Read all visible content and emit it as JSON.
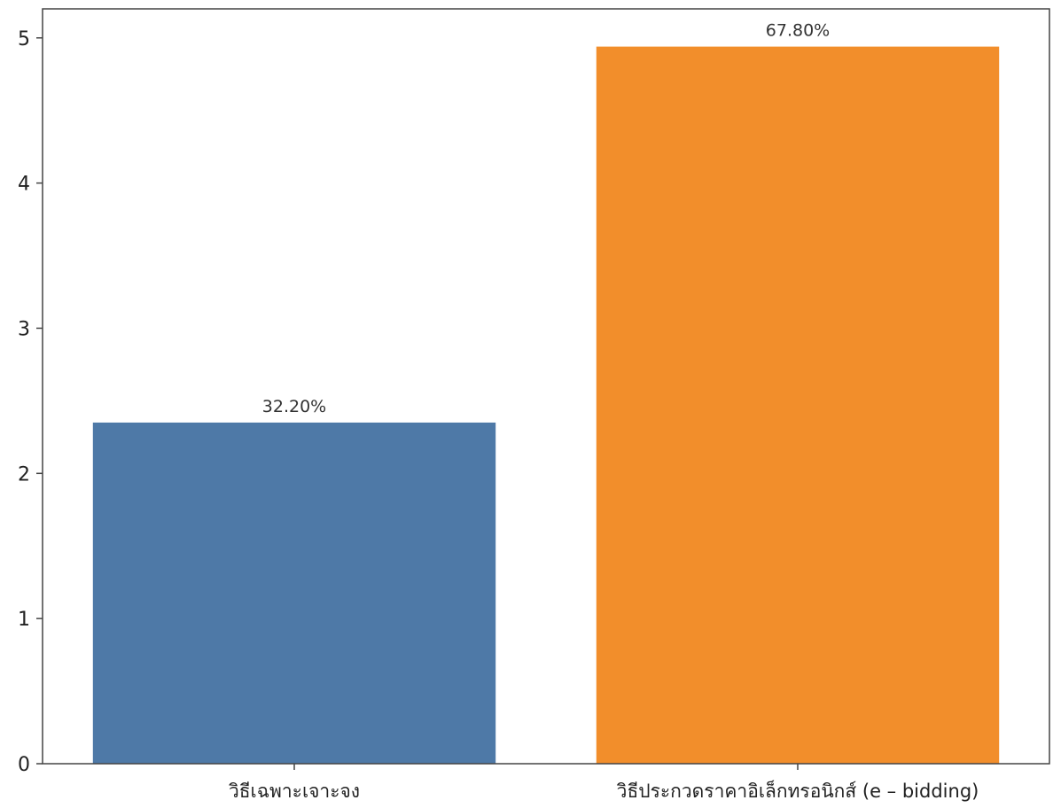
{
  "chart_data": {
    "type": "bar",
    "categories": [
      "วิธีเฉพาะเจาะจง",
      "วิธีประกวดราคาอิเล็กทรอนิกส์ (e –  bidding)"
    ],
    "values": [
      2.35,
      4.94
    ],
    "data_labels": [
      "32.20%",
      "67.80%"
    ],
    "bar_colors": [
      "#4e79a7",
      "#f28e2b"
    ],
    "ylim": [
      0,
      5.2
    ],
    "yticks": [
      0,
      1,
      2,
      3,
      4,
      5
    ],
    "title": "",
    "xlabel": "",
    "ylabel": "",
    "grid": false,
    "legend": "none"
  }
}
